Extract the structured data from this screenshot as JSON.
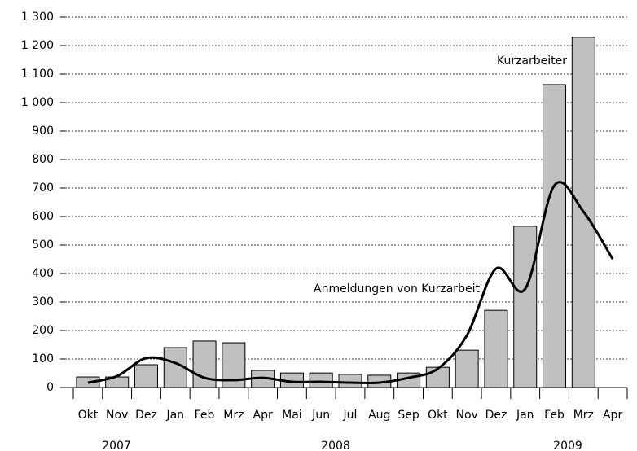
{
  "chart_data": {
    "type": "bar_line",
    "categories": [
      "Okt",
      "Nov",
      "Dez",
      "Jan",
      "Feb",
      "Mrz",
      "Apr",
      "Mai",
      "Jun",
      "Jul",
      "Aug",
      "Sep",
      "Okt",
      "Nov",
      "Dez",
      "Jan",
      "Feb",
      "Mrz",
      "Apr"
    ],
    "year_labels": [
      "2007",
      "2008",
      "2009"
    ],
    "series": [
      {
        "name": "Kurzarbeiter",
        "type": "bar",
        "color": "#c0c0c0",
        "values": [
          37,
          37,
          80,
          140,
          163,
          157,
          60,
          51,
          51,
          46,
          43,
          51,
          71,
          131,
          271,
          566,
          1063,
          1229,
          null
        ]
      },
      {
        "name": "Anmeldungen von Kurzarbeit",
        "type": "line",
        "color": "#000000",
        "values": [
          17,
          40,
          103,
          86,
          34,
          26,
          34,
          20,
          20,
          17,
          17,
          34,
          66,
          183,
          417,
          346,
          709,
          617,
          451
        ]
      }
    ],
    "ylim": [
      0,
      1300
    ],
    "yticks": [
      0,
      100,
      200,
      300,
      400,
      500,
      600,
      700,
      800,
      900,
      {
        "value": 1000,
        "label": "1 000"
      },
      {
        "value": 1100,
        "label": "1 100"
      },
      {
        "value": 1200,
        "label": "1 200"
      },
      {
        "value": 1300,
        "label": "1 300"
      }
    ],
    "grid": true
  }
}
